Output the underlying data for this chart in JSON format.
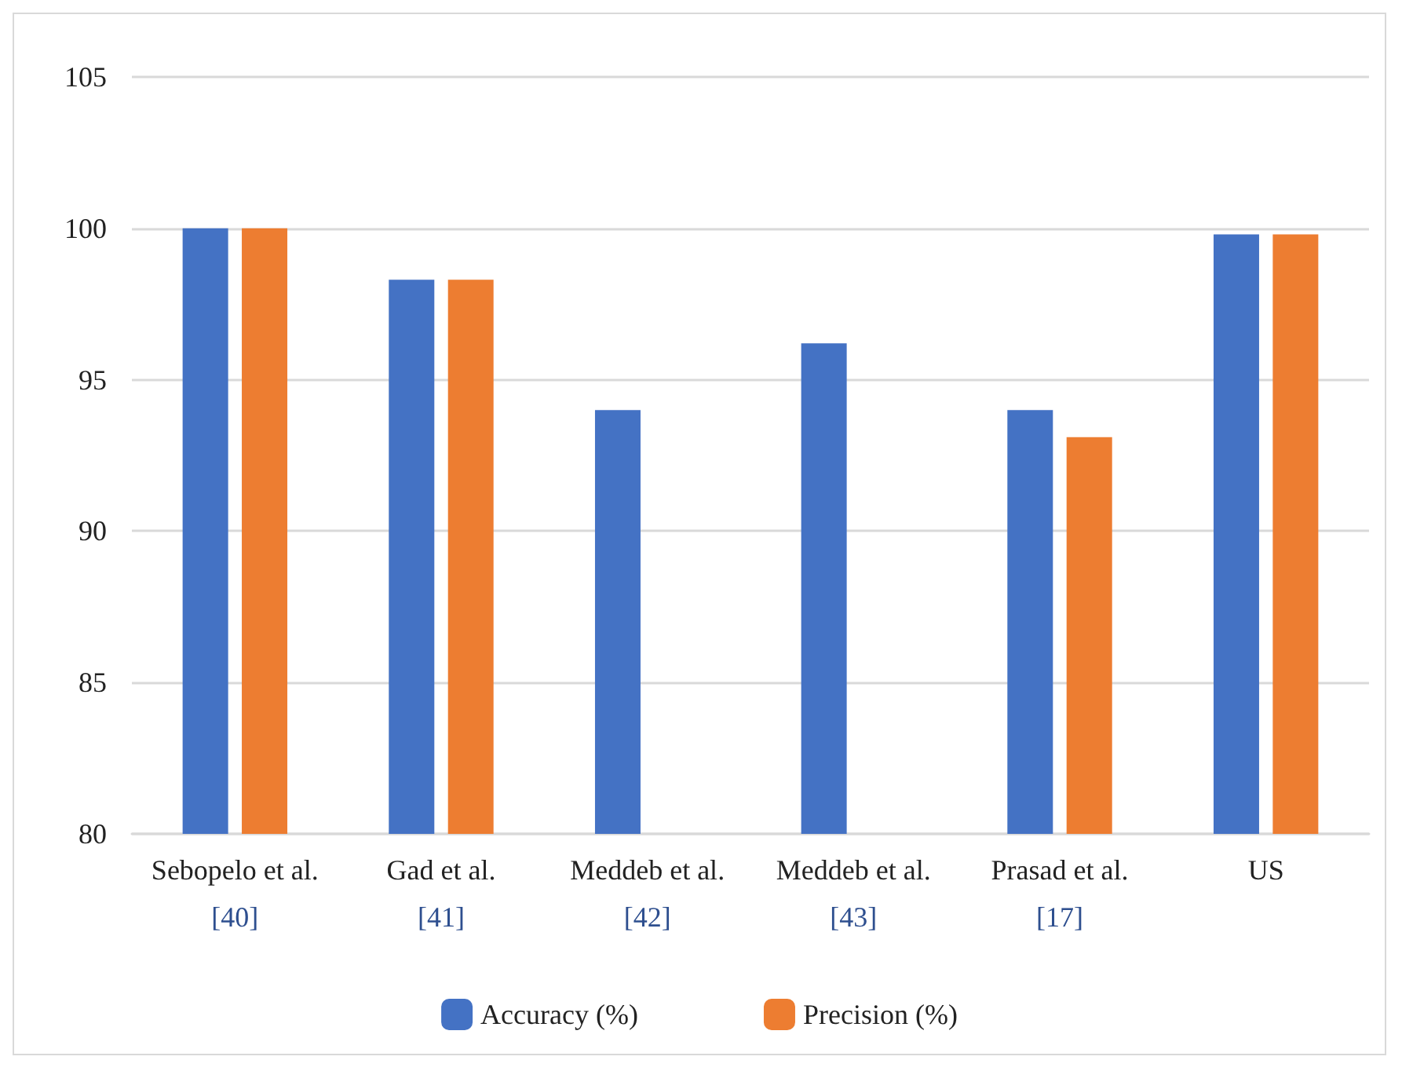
{
  "chart_data": {
    "type": "bar",
    "categories": [
      "Sebopelo et al.\n[40]",
      "Gad et al.\n[41]",
      "Meddeb et al.\n[42]",
      "Meddeb et al.\n[43]",
      "Prasad et al.\n[17]",
      "US"
    ],
    "series": [
      {
        "name": "Accuracy (%)",
        "color": "#4472c4",
        "values": [
          100,
          98.3,
          94.0,
          96.2,
          94.0,
          99.8
        ]
      },
      {
        "name": "Precision (%)",
        "color": "#ed7d31",
        "values": [
          100,
          98.3,
          null,
          null,
          93.1,
          99.8
        ]
      }
    ],
    "ylim": [
      80,
      105
    ],
    "yticks": [
      80,
      85,
      90,
      95,
      100,
      105
    ],
    "grid": "y",
    "legend": "bottom"
  }
}
